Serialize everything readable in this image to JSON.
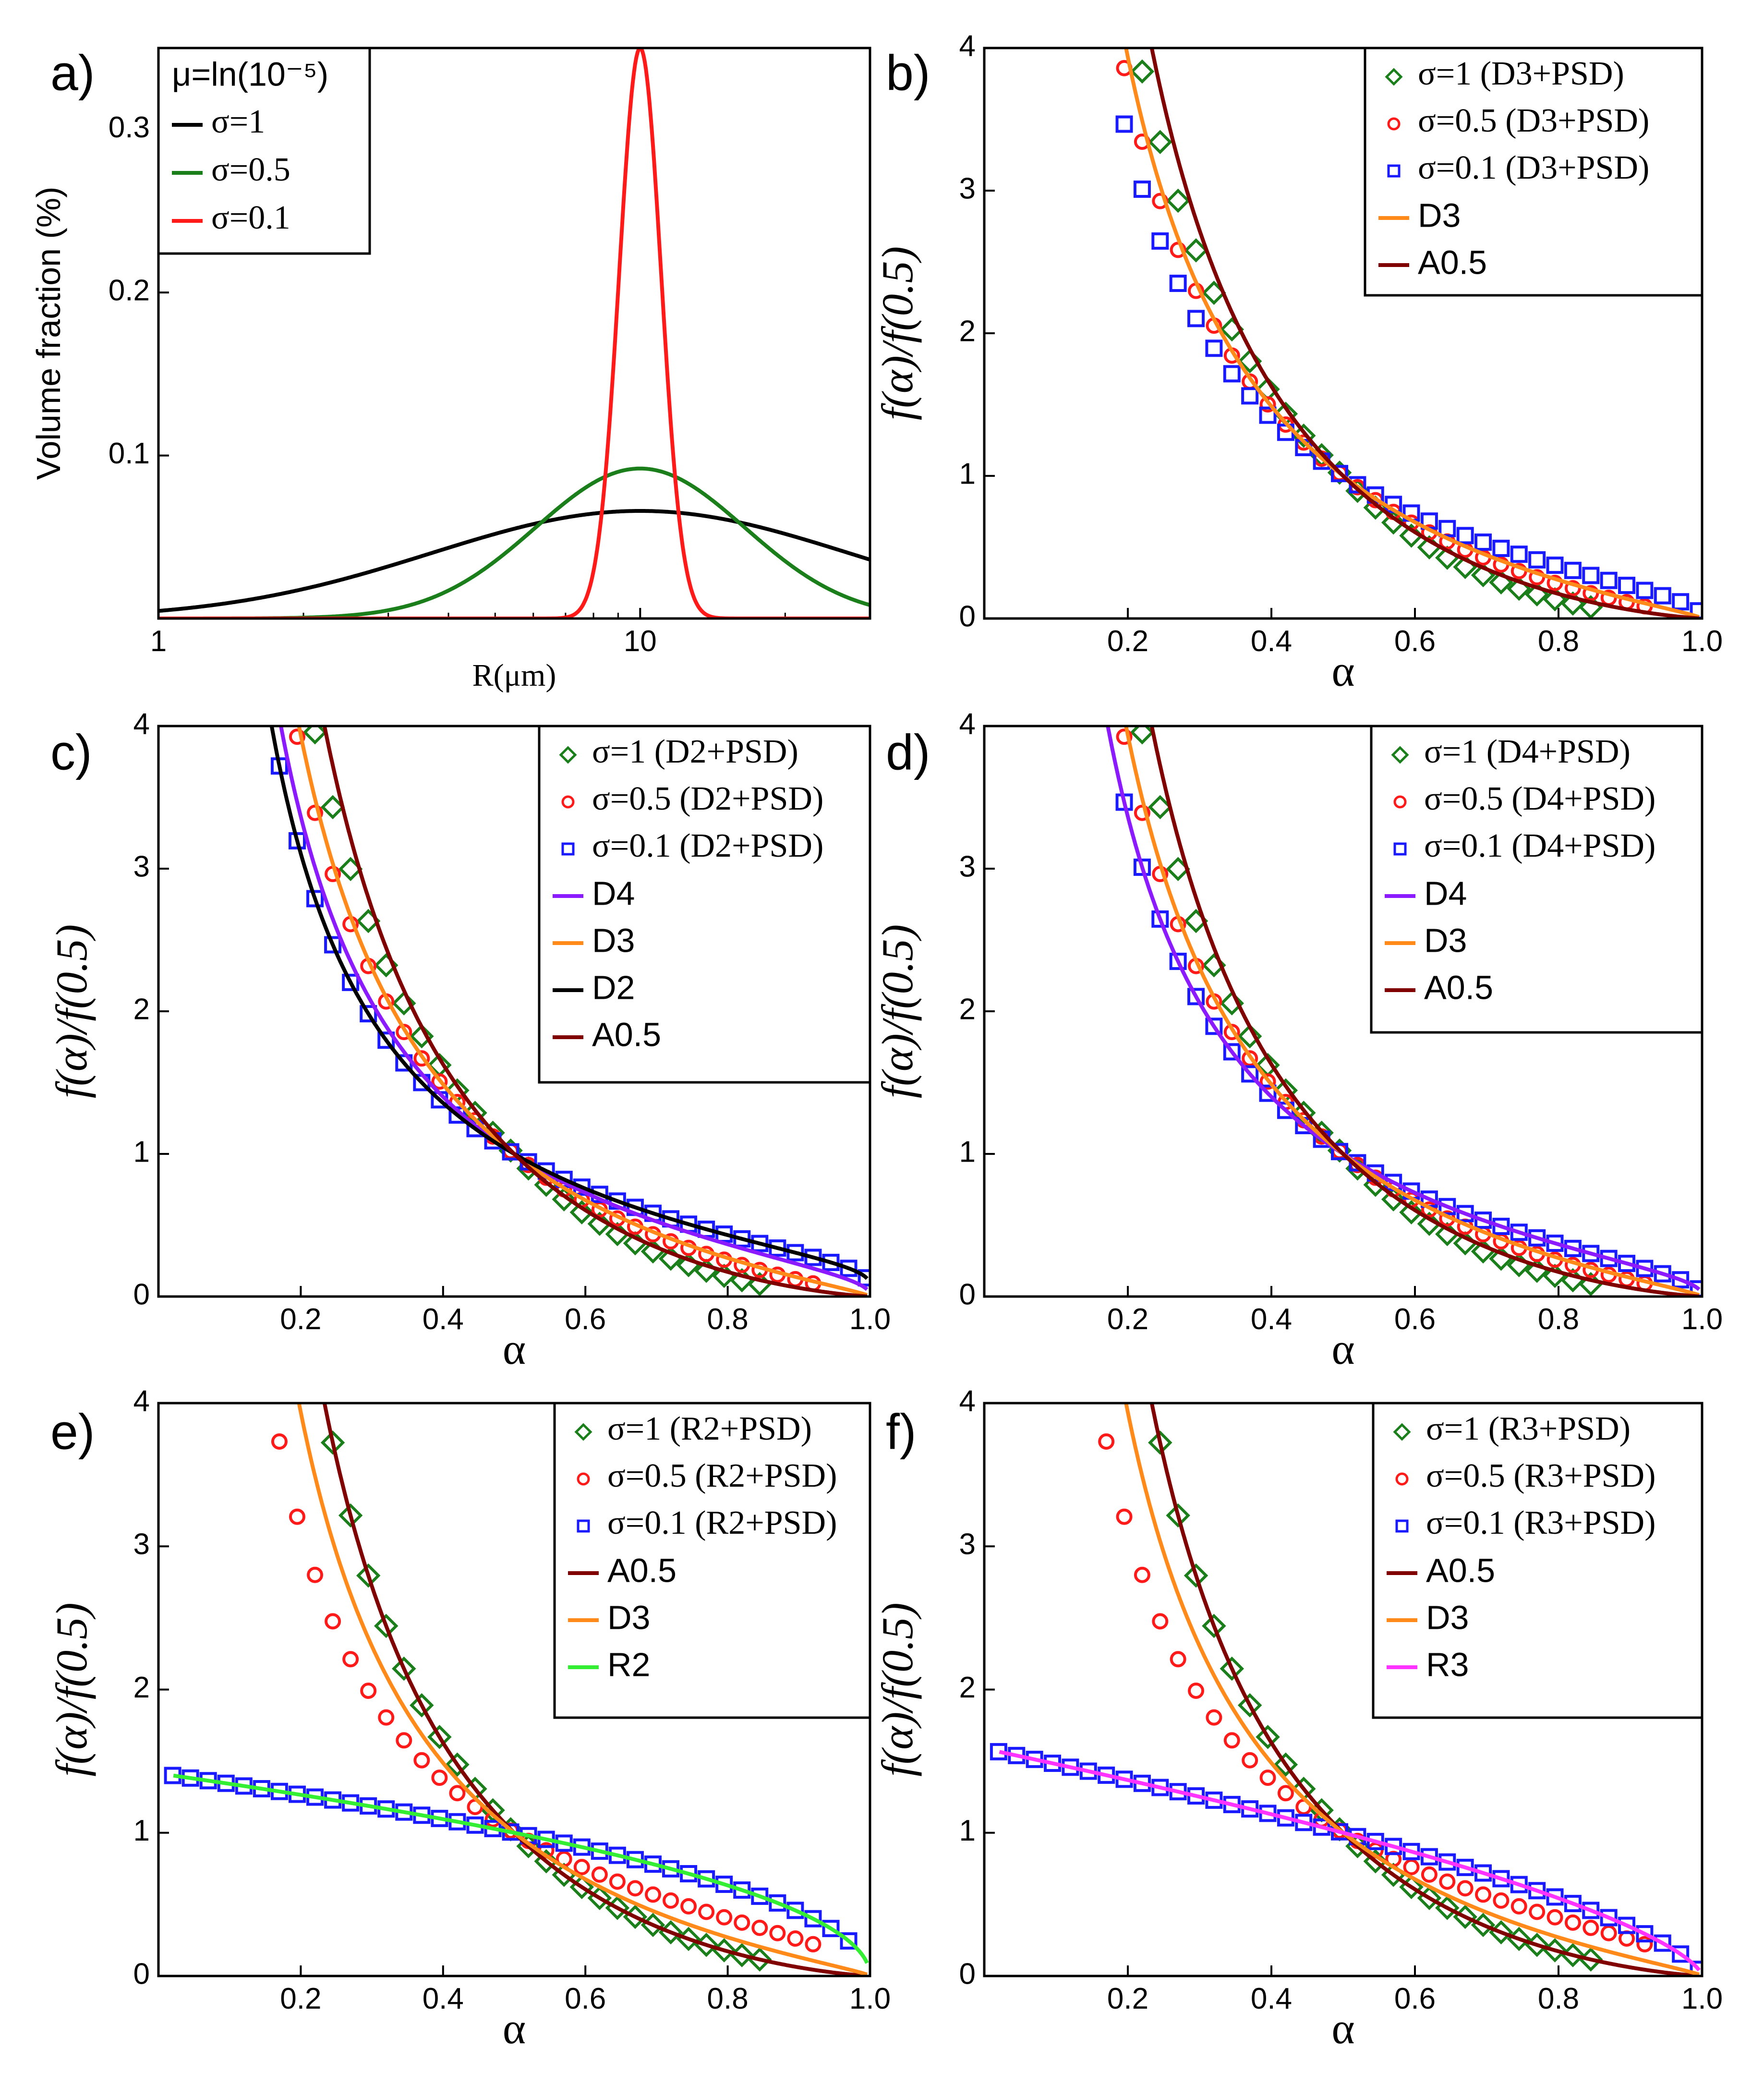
{
  "colors": {
    "black": "#000000",
    "green": "#1a7f1a",
    "red": "#ff1a1a",
    "blue": "#1a1aff",
    "orange": "#ff8a1a",
    "maroon": "#800000",
    "purple": "#8c1aff",
    "lime": "#33ee33",
    "magenta": "#ff33ff"
  },
  "chart_data": [
    {
      "panel": "a)",
      "type": "line",
      "xscale": "log",
      "xlim": [
        1,
        30
      ],
      "ylim": [
        0,
        0.35
      ],
      "xticks": [
        1,
        10
      ],
      "xtick_labels": [
        "1",
        "10"
      ],
      "yticks": [
        0.1,
        0.2,
        0.3
      ],
      "ytick_labels": [
        "0.1",
        "0.2",
        "0.3"
      ],
      "xlabel": "R(μm)",
      "ylabel": "Volume fraction (%)",
      "legend_title": "μ=ln(10⁻⁵)",
      "legend_position": "top-left",
      "series": [
        {
          "name": "σ=1",
          "color": "black",
          "sigma": 1.0,
          "peak": 0.066,
          "median": 10.0
        },
        {
          "name": "σ=0.5",
          "color": "green",
          "sigma": 0.5,
          "peak": 0.092,
          "median": 10.0
        },
        {
          "name": "σ=0.1",
          "color": "red",
          "sigma": 0.1,
          "peak": 0.35,
          "median": 10.0
        }
      ]
    },
    {
      "panel": "b)",
      "type": "scatter",
      "xlim": [
        0,
        1
      ],
      "ylim": [
        0,
        4
      ],
      "xticks": [
        0.2,
        0.4,
        0.6,
        0.8,
        1.0
      ],
      "xtick_labels": [
        "0.2",
        "0.4",
        "0.6",
        "0.8",
        "1.0"
      ],
      "yticks": [
        0,
        1,
        2,
        3,
        4
      ],
      "ytick_labels": [
        "0",
        "1",
        "2",
        "3",
        "4"
      ],
      "xlabel": "α",
      "ylabel": "f(α)/f(0.5)",
      "legend_position": "top-right",
      "series": [
        {
          "name": "σ=1 (D3+PSD)",
          "kind": "diamond",
          "color": "green",
          "model": "A0.5",
          "shift": 0.08,
          "xmax": 0.86
        },
        {
          "name": "σ=0.5 (D3+PSD)",
          "kind": "circle",
          "color": "red",
          "model": "D3",
          "shift": 0.03,
          "xmax": 0.94
        },
        {
          "name": "σ=0.1 (D3+PSD)",
          "kind": "square",
          "color": "blue",
          "model": "D4",
          "shift": 0.0,
          "xmax": 1.0
        },
        {
          "name": "D3",
          "kind": "line",
          "color": "orange",
          "model": "D3"
        },
        {
          "name": "A0.5",
          "kind": "line",
          "color": "maroon",
          "model": "A0.5"
        }
      ]
    },
    {
      "panel": "c)",
      "type": "scatter",
      "xlim": [
        0,
        1
      ],
      "ylim": [
        0,
        4
      ],
      "xticks": [
        0.2,
        0.4,
        0.6,
        0.8,
        1.0
      ],
      "xtick_labels": [
        "0.2",
        "0.4",
        "0.6",
        "0.8",
        "1.0"
      ],
      "yticks": [
        0,
        1,
        2,
        3,
        4
      ],
      "ytick_labels": [
        "0",
        "1",
        "2",
        "3",
        "4"
      ],
      "xlabel": "α",
      "ylabel": "f(α)/f(0.5)",
      "legend_position": "top-right",
      "series": [
        {
          "name": "σ=1 (D2+PSD)",
          "kind": "diamond",
          "color": "green",
          "model": "A0.5",
          "shift": 0.06,
          "xmax": 0.86
        },
        {
          "name": "σ=0.5 (D2+PSD)",
          "kind": "circle",
          "color": "red",
          "model": "D3",
          "shift": 0.02,
          "xmax": 0.94
        },
        {
          "name": "σ=0.1 (D2+PSD)",
          "kind": "square",
          "color": "blue",
          "model": "D2",
          "shift": 0.0,
          "xmax": 1.0
        },
        {
          "name": "D4",
          "kind": "line",
          "color": "purple",
          "model": "D4"
        },
        {
          "name": "D3",
          "kind": "line",
          "color": "orange",
          "model": "D3"
        },
        {
          "name": "D2",
          "kind": "line",
          "color": "black",
          "model": "D2"
        },
        {
          "name": "A0.5",
          "kind": "line",
          "color": "maroon",
          "model": "A0.5"
        }
      ]
    },
    {
      "panel": "d)",
      "type": "scatter",
      "xlim": [
        0,
        1
      ],
      "ylim": [
        0,
        4
      ],
      "xticks": [
        0.2,
        0.4,
        0.6,
        0.8,
        1.0
      ],
      "xtick_labels": [
        "0.2",
        "0.4",
        "0.6",
        "0.8",
        "1.0"
      ],
      "yticks": [
        0,
        1,
        2,
        3,
        4
      ],
      "ytick_labels": [
        "0",
        "1",
        "2",
        "3",
        "4"
      ],
      "xlabel": "α",
      "ylabel": "f(α)/f(0.5)",
      "legend_position": "top-right",
      "series": [
        {
          "name": "σ=1 (D4+PSD)",
          "kind": "diamond",
          "color": "green",
          "model": "A0.5",
          "shift": 0.06,
          "xmax": 0.86
        },
        {
          "name": "σ=0.5 (D4+PSD)",
          "kind": "circle",
          "color": "red",
          "model": "D3",
          "shift": 0.02,
          "xmax": 0.94
        },
        {
          "name": "σ=0.1 (D4+PSD)",
          "kind": "square",
          "color": "blue",
          "model": "D4",
          "shift": 0.0,
          "xmax": 1.0
        },
        {
          "name": "D4",
          "kind": "line",
          "color": "purple",
          "model": "D4"
        },
        {
          "name": "D3",
          "kind": "line",
          "color": "orange",
          "model": "D3"
        },
        {
          "name": "A0.5",
          "kind": "line",
          "color": "maroon",
          "model": "A0.5"
        }
      ]
    },
    {
      "panel": "e)",
      "type": "scatter",
      "xlim": [
        0,
        1
      ],
      "ylim": [
        0,
        4
      ],
      "xticks": [
        0.2,
        0.4,
        0.6,
        0.8,
        1.0
      ],
      "xtick_labels": [
        "0.2",
        "0.4",
        "0.6",
        "0.8",
        "1.0"
      ],
      "yticks": [
        0,
        1,
        2,
        3,
        4
      ],
      "ytick_labels": [
        "0",
        "1",
        "2",
        "3",
        "4"
      ],
      "xlabel": "α",
      "ylabel": "f(α)/f(0.5)",
      "legend_position": "top-right",
      "series": [
        {
          "name": "σ=1 (R2+PSD)",
          "kind": "diamond",
          "color": "green",
          "model": "A0.5",
          "shift": 0.0,
          "xmax": 0.86
        },
        {
          "name": "σ=0.5 (R2+PSD)",
          "kind": "circle",
          "color": "red",
          "model": "PSD05",
          "shift": 0.0,
          "xmax": 0.94
        },
        {
          "name": "σ=0.1 (R2+PSD)",
          "kind": "square",
          "color": "blue",
          "model": "R2",
          "shift": 0.0,
          "xmax": 0.99
        },
        {
          "name": "A0.5",
          "kind": "line",
          "color": "maroon",
          "model": "A0.5"
        },
        {
          "name": "D3",
          "kind": "line",
          "color": "orange",
          "model": "D3"
        },
        {
          "name": "R2",
          "kind": "line",
          "color": "lime",
          "model": "R2"
        }
      ]
    },
    {
      "panel": "f)",
      "type": "scatter",
      "xlim": [
        0,
        1
      ],
      "ylim": [
        0,
        4
      ],
      "xticks": [
        0.2,
        0.4,
        0.6,
        0.8,
        1.0
      ],
      "xtick_labels": [
        "0.2",
        "0.4",
        "0.6",
        "0.8",
        "1.0"
      ],
      "yticks": [
        0,
        1,
        2,
        3,
        4
      ],
      "ytick_labels": [
        "0",
        "1",
        "2",
        "3",
        "4"
      ],
      "xlabel": "α",
      "ylabel": "f(α)/f(0.5)",
      "legend_position": "top-right",
      "series": [
        {
          "name": "σ=1 (R3+PSD)",
          "kind": "diamond",
          "color": "green",
          "model": "A0.5",
          "shift": 0.0,
          "xmax": 0.86
        },
        {
          "name": "σ=0.5 (R3+PSD)",
          "kind": "circle",
          "color": "red",
          "model": "PSD05",
          "shift": 0.0,
          "xmax": 0.94
        },
        {
          "name": "σ=0.1 (R3+PSD)",
          "kind": "square",
          "color": "blue",
          "model": "R3",
          "shift": 0.0,
          "xmax": 1.0
        },
        {
          "name": "A0.5",
          "kind": "line",
          "color": "maroon",
          "model": "A0.5"
        },
        {
          "name": "D3",
          "kind": "line",
          "color": "orange",
          "model": "D3"
        },
        {
          "name": "R3",
          "kind": "line",
          "color": "magenta",
          "model": "R3"
        }
      ]
    }
  ]
}
